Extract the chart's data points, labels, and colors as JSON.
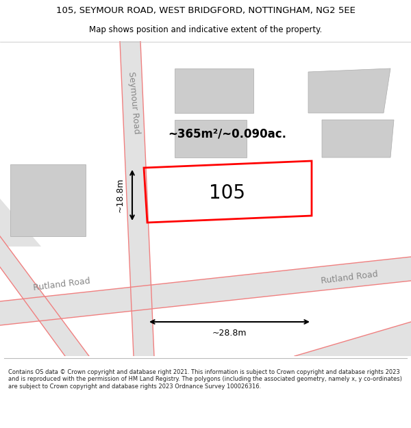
{
  "title_line1": "105, SEYMOUR ROAD, WEST BRIDGFORD, NOTTINGHAM, NG2 5EE",
  "title_line2": "Map shows position and indicative extent of the property.",
  "footer_text": "Contains OS data © Crown copyright and database right 2021. This information is subject to Crown copyright and database rights 2023 and is reproduced with the permission of HM Land Registry. The polygons (including the associated geometry, namely x, y co-ordinates) are subject to Crown copyright and database rights 2023 Ordnance Survey 100026316.",
  "bg_color": "#ffffff",
  "map_bg": "#f0f0f0",
  "road_color": "#e2e2e2",
  "road_line_color": "#f08080",
  "building_color": "#cccccc",
  "property_color": "#ff0000",
  "area_text": "~365m²/~0.090ac.",
  "label_105": "105",
  "dim_width": "~28.8m",
  "dim_height": "~18.8m",
  "seymour_road_label": "Seymour Road",
  "rutland_road_label1": "Rutland Road",
  "rutland_road_label2": "Rutland Road"
}
